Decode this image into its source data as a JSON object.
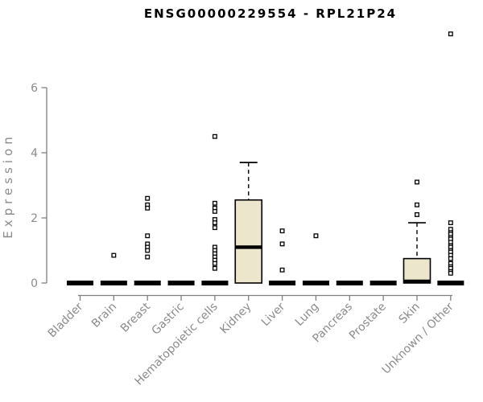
{
  "title": "ENSG00000229554 - RPL21P24",
  "chart_data": {
    "type": "boxplot",
    "title": "ENSG00000229554 - RPL21P24",
    "xlabel": "",
    "ylabel": "Expression",
    "ylim": [
      0,
      6
    ],
    "yticks": [
      0,
      2,
      4,
      6
    ],
    "grid": false,
    "legend": "none",
    "categories": [
      "Bladder",
      "Brain",
      "Breast",
      "Gastric",
      "Hematopoietic cells",
      "Kidney",
      "Liver",
      "Lung",
      "Pancreas",
      "Prostate",
      "Skin",
      "Unknown / Other"
    ],
    "series": [
      {
        "category": "Bladder",
        "q1": 0,
        "median": 0,
        "q3": 0,
        "whisker_low": 0,
        "whisker_high": 0,
        "outliers": []
      },
      {
        "category": "Brain",
        "q1": 0,
        "median": 0,
        "q3": 0,
        "whisker_low": 0,
        "whisker_high": 0,
        "outliers": [
          0.85
        ]
      },
      {
        "category": "Breast",
        "q1": 0,
        "median": 0,
        "q3": 0,
        "whisker_low": 0,
        "whisker_high": 0,
        "outliers": [
          2.6,
          2.4,
          2.3,
          1.45,
          1.2,
          1.1,
          1.0,
          0.8
        ]
      },
      {
        "category": "Gastric",
        "q1": 0,
        "median": 0,
        "q3": 0,
        "whisker_low": 0,
        "whisker_high": 0,
        "outliers": []
      },
      {
        "category": "Hematopoietic cells",
        "q1": 0,
        "median": 0,
        "q3": 0,
        "whisker_low": 0,
        "whisker_high": 0,
        "outliers": [
          4.5,
          2.45,
          2.3,
          2.2,
          1.95,
          1.85,
          1.7,
          1.1,
          1.0,
          0.9,
          0.8,
          0.7,
          0.6,
          0.45
        ]
      },
      {
        "category": "Kidney",
        "q1": 0,
        "median": 1.1,
        "q3": 2.55,
        "whisker_low": 0,
        "whisker_high": 3.7,
        "outliers": []
      },
      {
        "category": "Liver",
        "q1": 0,
        "median": 0,
        "q3": 0,
        "whisker_low": 0,
        "whisker_high": 0,
        "outliers": [
          1.6,
          1.2,
          0.4
        ]
      },
      {
        "category": "Lung",
        "q1": 0,
        "median": 0,
        "q3": 0,
        "whisker_low": 0,
        "whisker_high": 0,
        "outliers": [
          1.45
        ]
      },
      {
        "category": "Pancreas",
        "q1": 0,
        "median": 0,
        "q3": 0,
        "whisker_low": 0,
        "whisker_high": 0,
        "outliers": []
      },
      {
        "category": "Prostate",
        "q1": 0,
        "median": 0,
        "q3": 0,
        "whisker_low": 0,
        "whisker_high": 0,
        "outliers": []
      },
      {
        "category": "Skin",
        "q1": 0,
        "median": 0.05,
        "q3": 0.75,
        "whisker_low": 0,
        "whisker_high": 1.85,
        "outliers": [
          3.1,
          2.4,
          2.1
        ]
      },
      {
        "category": "Unknown / Other",
        "q1": 0,
        "median": 0,
        "q3": 0,
        "whisker_low": 0,
        "whisker_high": 0,
        "outliers": [
          7.65,
          1.85,
          1.65,
          1.55,
          1.5,
          1.4,
          1.35,
          1.25,
          1.15,
          1.1,
          1.0,
          0.95,
          0.85,
          0.75,
          0.6,
          0.5,
          0.45,
          0.35,
          0.3
        ]
      }
    ],
    "colors": {
      "box_fill": "#ece7cc",
      "box_border": "#000000",
      "median": "#000000",
      "whisker": "#000000",
      "outlier_stroke": "#000000",
      "outlier_fill": "#ffffff",
      "axis": "#7f7f7f",
      "tick_label": "#8a8a8a",
      "title": "#000000",
      "background": "#ffffff"
    }
  }
}
